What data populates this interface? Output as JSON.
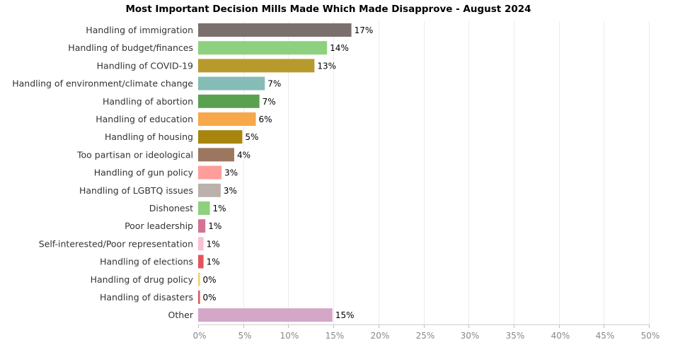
{
  "chart_data": {
    "type": "bar",
    "orientation": "horizontal",
    "title": "Most Important Decision Mills Made Which Made Disapprove - August 2024",
    "xlabel": "",
    "ylabel": "",
    "xlim": [
      0,
      50
    ],
    "xticks": [
      0,
      5,
      10,
      15,
      20,
      25,
      30,
      35,
      40,
      45,
      50
    ],
    "tick_format": "%",
    "grid": "vertical",
    "categories": [
      "Handling of immigration",
      "Handling of budget/finances",
      "Handling of COVID-19",
      "Handling of environment/climate change",
      "Handling of abortion",
      "Handling of education",
      "Handling of housing",
      "Too partisan or ideological",
      "Handling of gun policy",
      "Handling of LGBTQ issues",
      "Dishonest",
      "Poor leadership",
      "Self-interested/Poor representation",
      "Handling of elections",
      "Handling of drug policy",
      "Handling of disasters",
      "Other"
    ],
    "values": [
      17,
      14,
      13,
      7,
      7,
      6,
      5,
      4,
      3,
      3,
      1,
      1,
      1,
      1,
      0,
      0,
      15
    ],
    "bar_values": [
      17.0,
      14.3,
      12.9,
      7.4,
      6.8,
      6.4,
      4.9,
      4.0,
      2.6,
      2.5,
      1.3,
      0.8,
      0.6,
      0.6,
      0.2,
      0.2,
      14.9
    ],
    "value_labels": [
      "17%",
      "14%",
      "13%",
      "7%",
      "7%",
      "6%",
      "5%",
      "4%",
      "3%",
      "3%",
      "1%",
      "1%",
      "1%",
      "1%",
      "0%",
      "0%",
      "15%"
    ],
    "colors": [
      "#7a706d",
      "#8dd17e",
      "#b89a2c",
      "#86bcb6",
      "#59a14f",
      "#f6a84a",
      "#a8860d",
      "#9d7660",
      "#ff9d9a",
      "#bab0ac",
      "#8dd17e",
      "#d37295",
      "#fabfd2",
      "#e15759",
      "#f1ce63",
      "#e15759",
      "#d4a6c8"
    ]
  }
}
